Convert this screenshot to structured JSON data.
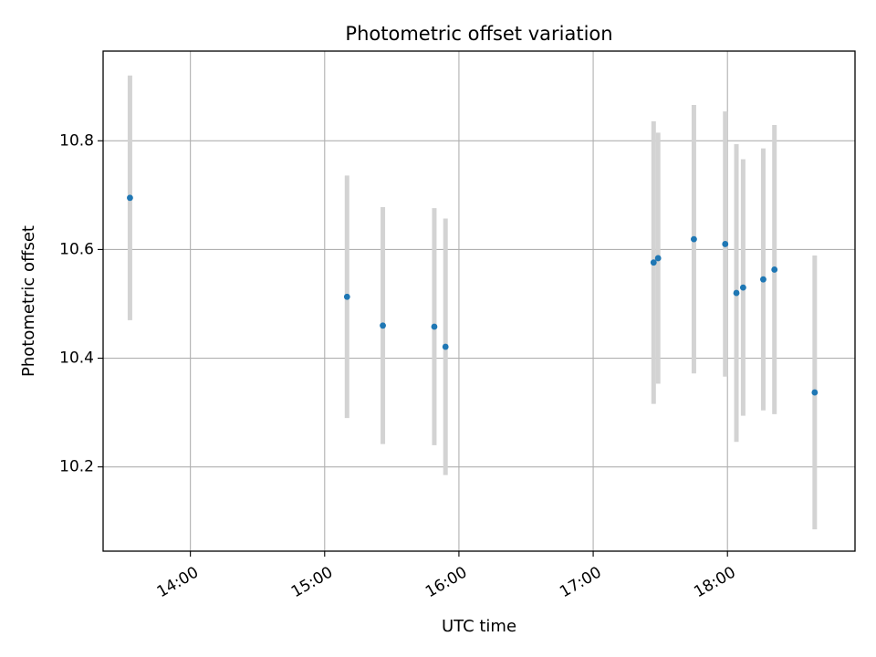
{
  "chart_data": {
    "type": "scatter",
    "title": "Photometric offset variation",
    "xlabel": "UTC time",
    "ylabel": "Photometric offset",
    "x_ticks": [
      "14:00",
      "15:00",
      "16:00",
      "17:00",
      "18:00"
    ],
    "y_ticks": [
      10.2,
      10.4,
      10.6,
      10.8
    ],
    "xlim": [
      "13:21",
      "18:57"
    ],
    "ylim": [
      10.045,
      10.965
    ],
    "grid": true,
    "colors": {
      "point": "#1f77b4",
      "errorbar": "#d3d3d3",
      "grid": "#b0b0b0"
    },
    "series": [
      {
        "points": [
          {
            "x": "13:33",
            "y": 10.695,
            "err": 0.225
          },
          {
            "x": "15:10",
            "y": 10.513,
            "err": 0.223
          },
          {
            "x": "15:26",
            "y": 10.46,
            "err": 0.218
          },
          {
            "x": "15:49",
            "y": 10.458,
            "err": 0.218
          },
          {
            "x": "15:54",
            "y": 10.421,
            "err": 0.236
          },
          {
            "x": "17:27",
            "y": 10.576,
            "err": 0.26
          },
          {
            "x": "17:29",
            "y": 10.584,
            "err": 0.231
          },
          {
            "x": "17:45",
            "y": 10.619,
            "err": 0.247
          },
          {
            "x": "17:59",
            "y": 10.61,
            "err": 0.244
          },
          {
            "x": "18:04",
            "y": 10.52,
            "err": 0.274
          },
          {
            "x": "18:07",
            "y": 10.53,
            "err": 0.236
          },
          {
            "x": "18:16",
            "y": 10.545,
            "err": 0.241
          },
          {
            "x": "18:21",
            "y": 10.563,
            "err": 0.266
          },
          {
            "x": "18:39",
            "y": 10.337,
            "err": 0.252
          }
        ]
      }
    ]
  }
}
